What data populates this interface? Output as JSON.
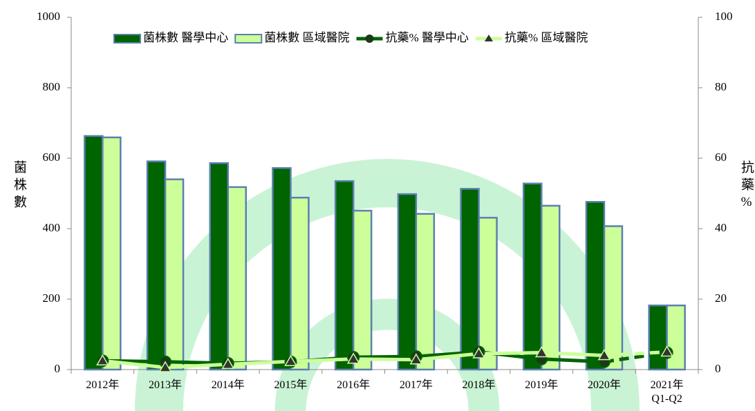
{
  "chart_data": {
    "type": "bar",
    "categories": [
      "2012年",
      "2013年",
      "2014年",
      "2015年",
      "2016年",
      "2017年",
      "2018年",
      "2019年",
      "2020年",
      "2021年\nQ1-Q2"
    ],
    "y_label": "菌株數",
    "y2_label": "抗藥%",
    "series": [
      {
        "name": "菌株數 醫學中心",
        "type": "bar",
        "color": "#006400",
        "values": [
          663,
          591,
          586,
          572,
          535,
          498,
          513,
          528,
          476,
          182
        ]
      },
      {
        "name": "菌株數 區域醫院",
        "type": "bar",
        "color": "#ccff99",
        "values": [
          659,
          540,
          518,
          488,
          451,
          442,
          431,
          465,
          407,
          182
        ]
      },
      {
        "name": "抗藥% 醫學中心",
        "type": "line",
        "axis": "y2",
        "color": "#006400",
        "values": [
          2.5,
          2.2,
          1.8,
          2.2,
          3.5,
          3.7,
          5.0,
          3.0,
          2.2,
          4.8
        ]
      },
      {
        "name": "抗藥% 區域醫院",
        "type": "line",
        "axis": "y2",
        "color": "#ccff99",
        "values": [
          2.5,
          0.6,
          1.5,
          2.3,
          3.0,
          2.8,
          4.5,
          4.8,
          4.0,
          5.0
        ]
      }
    ],
    "ylim": [
      0,
      1000
    ],
    "yticks": [
      0,
      200,
      400,
      600,
      800,
      1000
    ],
    "y2lim": [
      0,
      100
    ],
    "y2ticks": [
      0,
      20,
      40,
      60,
      80,
      100
    ]
  }
}
